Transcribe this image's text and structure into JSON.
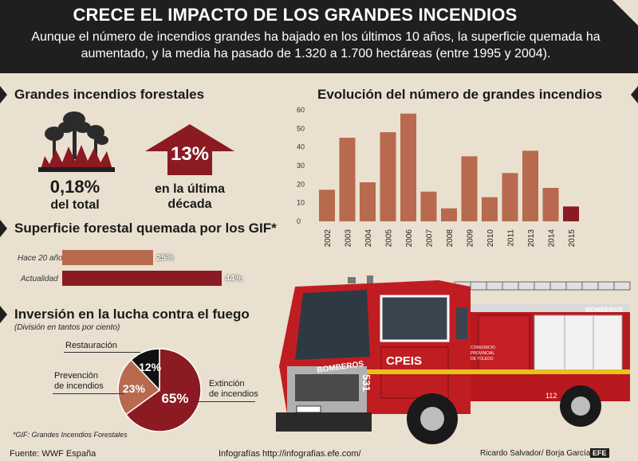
{
  "header": {
    "title": "CRECE EL IMPACTO DE LOS GRANDES INCENDIOS",
    "subtitle": "Aunque el número de incendios grandes ha bajado en los últimos 10 años, la superficie quemada ha aumentado, y la media ha pasado de 1.320 a 1.700 hectáreas (entre 1995 y 2004)."
  },
  "forest": {
    "title": "Grandes incendios forestales",
    "pct_total": "0,18%",
    "pct_total_label": "del total",
    "decade_pct": "13%",
    "decade_label_1": "en la última",
    "decade_label_2": "década"
  },
  "burned": {
    "title": "Superficie forestal quemada por los GIF*",
    "rows": [
      {
        "label": "Hace 20 años",
        "value": 25,
        "text": "25%",
        "color": "#b86a4e"
      },
      {
        "label": "Actualidad",
        "value": 44,
        "text": "44%",
        "color": "#8b1a22"
      }
    ]
  },
  "investment": {
    "title": "Inversión en la lucha contra el fuego",
    "subtitle": "(División en tantos por ciento)",
    "labels": {
      "restauracion": "Restauración",
      "prevencion_1": "Prevención",
      "prevencion_2": "de incendios",
      "extincion_1": "Extinción",
      "extincion_2": "de incendios"
    }
  },
  "note": "*GIF: Grandes Incendios Forestales",
  "footer": {
    "source": "Fuente: WWF España",
    "infographics": "Infografías http://infografias.efe.com/",
    "credits": "Ricardo Salvador/ Borja García",
    "agency": "EFE"
  },
  "truck": {
    "unit": "CPEIS",
    "side_text": "BOMBEROS",
    "door_text_1": "CONSORCIO",
    "door_text_2": "PROVINCIAL",
    "door_text_3": "DE TOLEDO",
    "phone": "112",
    "number": "531"
  },
  "colors": {
    "bar": "#b86a4e",
    "bar_highlight": "#8b1a22",
    "header_bg": "#1f1f1f",
    "page_bg": "#e9e0d0"
  },
  "icons": [
    "forest-fire-icon",
    "up-arrow-icon"
  ],
  "chart_data": [
    {
      "type": "bar",
      "title": "Evolución del número de grandes incendios",
      "categories": [
        "2002",
        "2003",
        "2004",
        "2005",
        "2006",
        "2007",
        "2008",
        "2009",
        "2010",
        "2011",
        "2013",
        "2014",
        "2015"
      ],
      "values": [
        17,
        45,
        21,
        48,
        58,
        16,
        7,
        35,
        13,
        26,
        38,
        18,
        8
      ],
      "ylim": [
        0,
        60
      ],
      "yticks": [
        0,
        10,
        20,
        30,
        40,
        50,
        60
      ],
      "highlight_last": true,
      "grid": false
    },
    {
      "type": "pie",
      "title": "Inversión en la lucha contra el fuego",
      "slices": [
        {
          "label": "Extinción de incendios",
          "value": 65,
          "text": "65%",
          "color": "#8b1a22"
        },
        {
          "label": "Prevención de incendios",
          "value": 23,
          "text": "23%",
          "color": "#b86a4e"
        },
        {
          "label": "Restauración",
          "value": 12,
          "text": "12%",
          "color": "#111111"
        }
      ]
    }
  ]
}
